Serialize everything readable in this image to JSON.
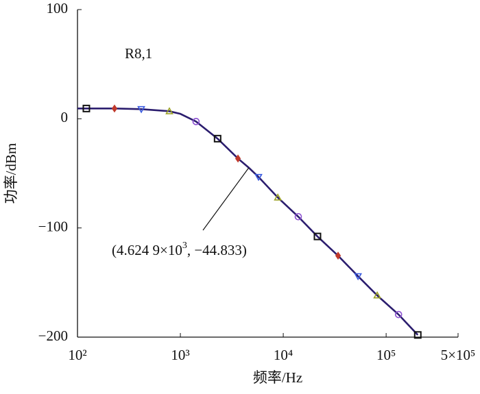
{
  "chart_data": {
    "type": "line",
    "xlabel": "频率/Hz",
    "ylabel": "功率/dBm",
    "xscale": "log",
    "xlim": [
      100,
      500000
    ],
    "ylim": [
      -200,
      100
    ],
    "xticks": [
      {
        "value": 100,
        "label": "10²"
      },
      {
        "value": 1000,
        "label": "10³"
      },
      {
        "value": 10000,
        "label": "10⁴"
      },
      {
        "value": 100000,
        "label": "10⁵"
      },
      {
        "value": 500000,
        "label": "5×10⁵"
      }
    ],
    "yticks": [
      100,
      0,
      {
        "value": -100,
        "label": "−100"
      },
      {
        "value": -200,
        "label": "−200"
      }
    ],
    "grid": false,
    "line_color": "#2b1d6e",
    "x": [
      100,
      122,
      229,
      417,
      782,
      1000,
      1420,
      2300,
      3630,
      4624.9,
      5750,
      8850,
      14000,
      21500,
      34100,
      53300,
      81900,
      132000,
      203000
    ],
    "values": [
      9.4,
      9.4,
      9.4,
      8.8,
      6.9,
      4.5,
      -2.5,
      -18.2,
      -36.4,
      -44.833,
      -53.3,
      -72.1,
      -89.7,
      -107.8,
      -125.4,
      -144.2,
      -161.8,
      -179.3,
      -198
    ],
    "markers": [
      {
        "marker": "square",
        "color": "#111111",
        "x": [
          122,
          2300,
          21500,
          203000
        ],
        "values": [
          9.4,
          -18.2,
          -107.8,
          -198
        ]
      },
      {
        "marker": "diamond",
        "color": "#c0392b",
        "x": [
          229,
          3630,
          34100
        ],
        "values": [
          9.4,
          -36.4,
          -125.4
        ]
      },
      {
        "marker": "triangle-down",
        "color": "#3a5be0",
        "x": [
          417,
          5750,
          53300
        ],
        "values": [
          8.8,
          -53.3,
          -144.2
        ]
      },
      {
        "marker": "triangle-up",
        "color": "#9aa024",
        "x": [
          782,
          8850,
          81900
        ],
        "values": [
          6.9,
          -72.1,
          -161.8
        ]
      },
      {
        "marker": "circle",
        "color": "#8a4fd0",
        "x": [
          1420,
          14000,
          132000
        ],
        "values": [
          -2.5,
          -89.7,
          -179.3
        ]
      }
    ],
    "label": "R8,1",
    "annotation": {
      "x": 4624.9,
      "y": -44.833,
      "text": [
        "(4.624 9×10",
        "3",
        ", −44.833)"
      ]
    }
  }
}
